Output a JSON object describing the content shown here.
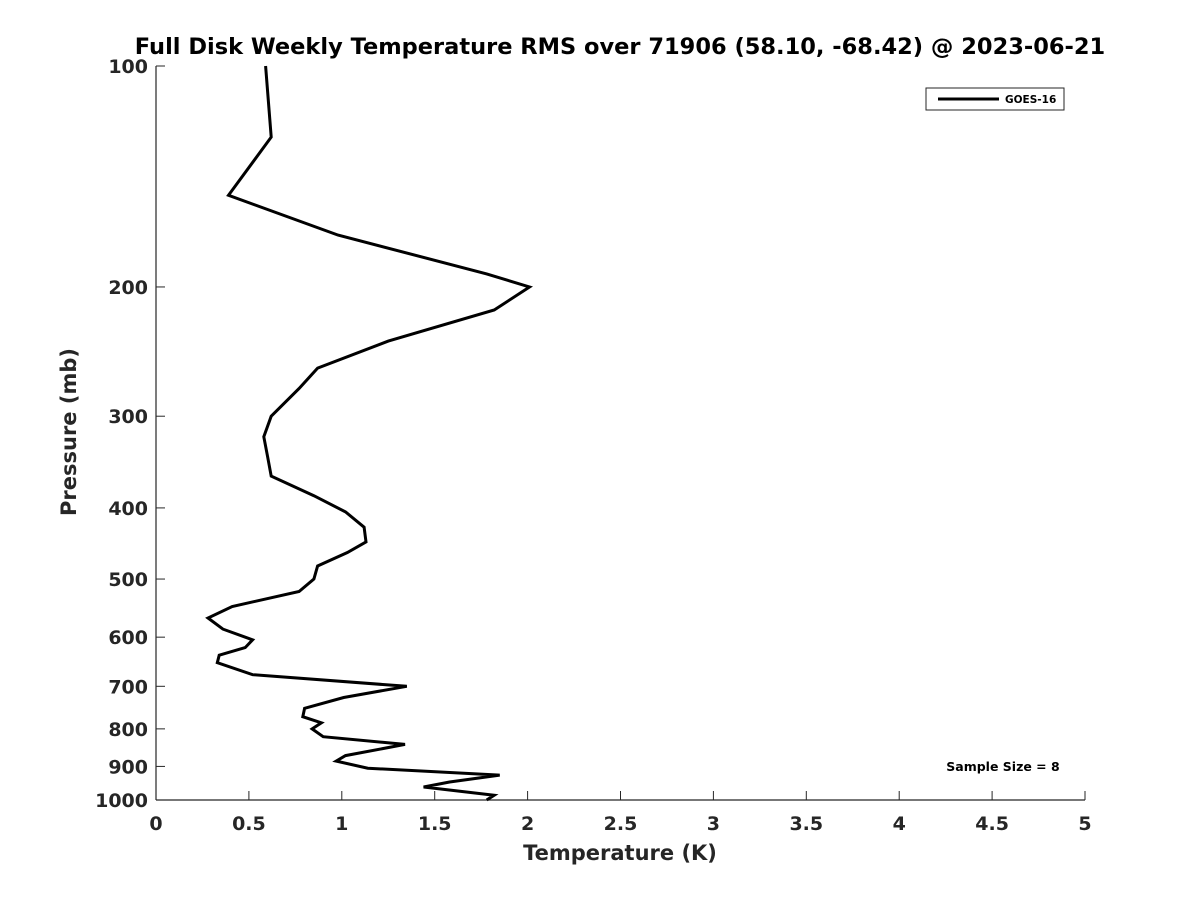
{
  "chart_data": {
    "type": "line",
    "title": "Full Disk Weekly Temperature RMS over 71906 (58.10, -68.42) @ 2023-06-21",
    "xlabel": "Temperature (K)",
    "ylabel": "Pressure (mb)",
    "xlim": [
      0,
      5
    ],
    "ylim": [
      100,
      1000
    ],
    "yscale": "log",
    "yreversed": true,
    "x_ticks": [
      "0",
      "0.5",
      "1",
      "1.5",
      "2",
      "2.5",
      "3",
      "3.5",
      "4",
      "4.5",
      "5"
    ],
    "y_ticks": [
      "100",
      "200",
      "300",
      "400",
      "500",
      "600",
      "700",
      "800",
      "900",
      "1000"
    ],
    "grid": false,
    "legend_position": "top-right",
    "annotation": "Sample Size = 8",
    "series": [
      {
        "name": "GOES-16",
        "color": "#000000",
        "points": [
          [
            0.59,
            100
          ],
          [
            0.62,
            125
          ],
          [
            0.39,
            150
          ],
          [
            0.98,
            170
          ],
          [
            1.78,
            192
          ],
          [
            2.01,
            200
          ],
          [
            1.82,
            215
          ],
          [
            1.25,
            237
          ],
          [
            0.87,
            258
          ],
          [
            0.77,
            275
          ],
          [
            0.62,
            300
          ],
          [
            0.58,
            320
          ],
          [
            0.6,
            340
          ],
          [
            0.62,
            362
          ],
          [
            0.85,
            385
          ],
          [
            1.02,
            405
          ],
          [
            1.12,
            425
          ],
          [
            1.13,
            445
          ],
          [
            1.03,
            460
          ],
          [
            0.87,
            480
          ],
          [
            0.85,
            500
          ],
          [
            0.77,
            520
          ],
          [
            0.41,
            545
          ],
          [
            0.28,
            565
          ],
          [
            0.36,
            585
          ],
          [
            0.52,
            605
          ],
          [
            0.48,
            620
          ],
          [
            0.34,
            635
          ],
          [
            0.33,
            650
          ],
          [
            0.52,
            675
          ],
          [
            1.35,
            700
          ],
          [
            1.01,
            725
          ],
          [
            0.8,
            750
          ],
          [
            0.79,
            770
          ],
          [
            0.89,
            785
          ],
          [
            0.84,
            800
          ],
          [
            0.9,
            820
          ],
          [
            1.34,
            840
          ],
          [
            1.02,
            870
          ],
          [
            0.97,
            885
          ],
          [
            1.14,
            905
          ],
          [
            1.85,
            925
          ],
          [
            1.58,
            945
          ],
          [
            1.44,
            960
          ],
          [
            1.82,
            985
          ],
          [
            1.78,
            1000
          ]
        ]
      }
    ]
  }
}
